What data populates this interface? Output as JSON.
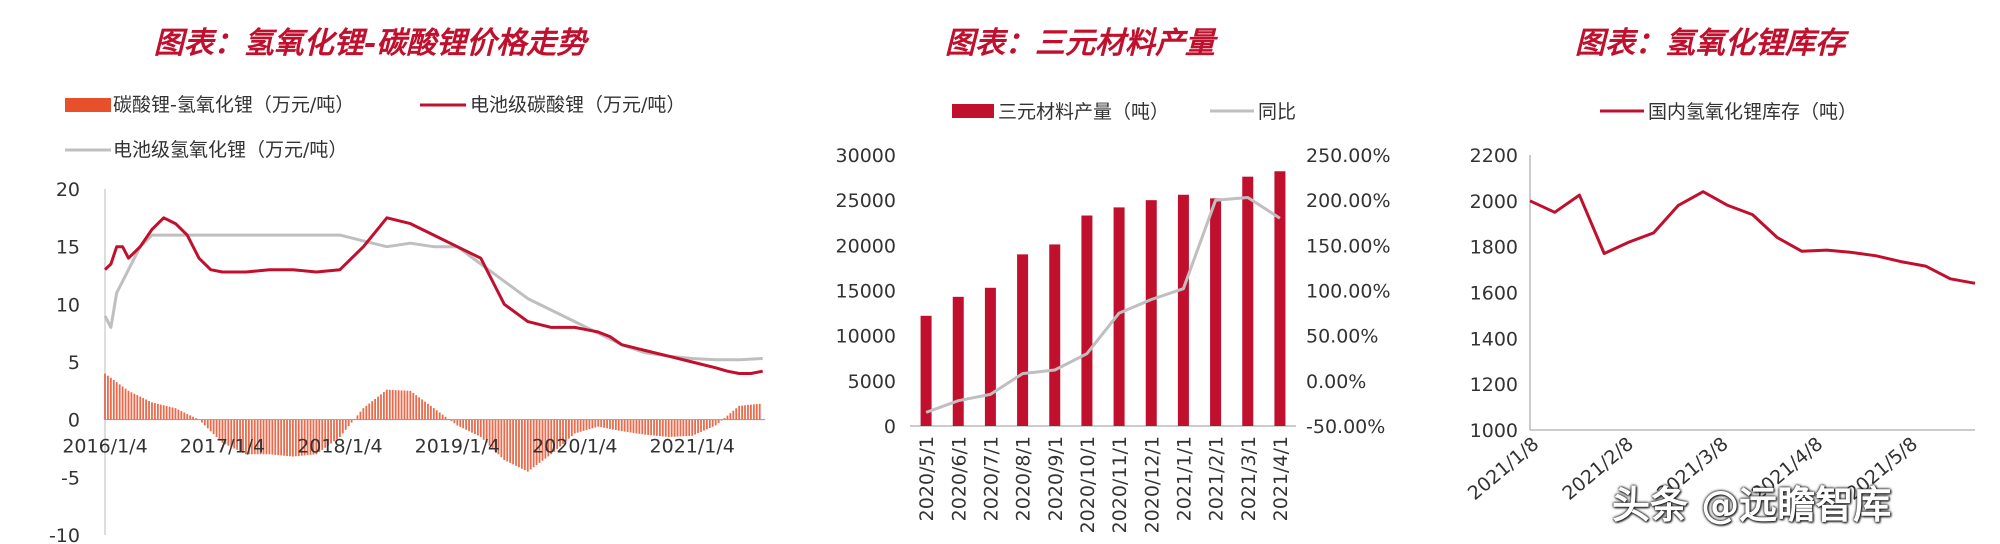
{
  "watermark": "头条 @远瞻智库",
  "chart_data": [
    {
      "type": "line",
      "title": "图表：氢氧化锂-碳酸锂价格走势",
      "x_labels": [
        "2016/1/4",
        "2017/1/4",
        "2018/1/4",
        "2019/1/4",
        "2020/1/4",
        "2021/1/4"
      ],
      "ylim": [
        -10,
        20
      ],
      "y_ticks": [
        "20",
        "15",
        "10",
        "5",
        "0",
        "-5",
        "-10"
      ],
      "legend": [
        "碳酸锂-氢氧化锂（万元/吨）",
        "电池级碳酸锂（万元/吨）",
        "电池级氢氧化锂（万元/吨）"
      ],
      "colors": {
        "spread": "#e8502b",
        "carbonate": "#c0102d",
        "hydroxide": "#bfbfbf"
      },
      "series": [
        {
          "name": "电池级碳酸锂（万元/吨）",
          "type": "line",
          "x": [
            0,
            0.05,
            0.1,
            0.15,
            0.2,
            0.3,
            0.4,
            0.5,
            0.6,
            0.7,
            0.8,
            0.9,
            1.0,
            1.2,
            1.4,
            1.6,
            1.8,
            2.0,
            2.2,
            2.4,
            2.6,
            2.8,
            3.0,
            3.2,
            3.4,
            3.6,
            3.8,
            3.9,
            4.0,
            4.1,
            4.2,
            4.3,
            4.4,
            4.6,
            4.8,
            5.0,
            5.2,
            5.3,
            5.4,
            5.5,
            5.6
          ],
          "y": [
            13,
            13.5,
            15,
            15,
            14,
            15,
            16.5,
            17.5,
            17,
            16,
            14,
            13,
            12.8,
            12.8,
            13,
            13,
            12.8,
            13,
            15,
            17.5,
            17,
            16,
            15,
            14,
            10,
            8.5,
            8,
            8,
            8,
            7.8,
            7.6,
            7.2,
            6.5,
            6,
            5.5,
            5,
            4.5,
            4.2,
            4,
            4,
            4.2
          ]
        },
        {
          "name": "电池级氢氧化锂（万元/吨）",
          "type": "line",
          "x": [
            0,
            0.05,
            0.1,
            0.2,
            0.3,
            0.4,
            0.5,
            1.0,
            1.5,
            2.0,
            2.2,
            2.4,
            2.6,
            2.8,
            3.0,
            3.2,
            3.4,
            3.6,
            3.8,
            4.0,
            4.2,
            4.4,
            4.6,
            4.8,
            5.0,
            5.2,
            5.4,
            5.6
          ],
          "y": [
            9,
            8,
            11,
            13,
            15,
            16,
            16,
            16,
            16,
            16,
            15.5,
            15,
            15.3,
            15,
            15,
            13.5,
            12,
            10.5,
            9.5,
            8.5,
            7.5,
            6.5,
            5.8,
            5.5,
            5.3,
            5.2,
            5.2,
            5.3
          ]
        },
        {
          "name": "碳酸锂-氢氧化锂（万元/吨）",
          "type": "bar",
          "x": [
            0,
            0.2,
            0.4,
            0.6,
            0.8,
            1.0,
            1.2,
            1.4,
            1.6,
            1.8,
            2.0,
            2.2,
            2.4,
            2.6,
            2.8,
            3.0,
            3.2,
            3.4,
            3.6,
            3.8,
            4.0,
            4.2,
            4.4,
            4.6,
            4.8,
            5.0,
            5.2,
            5.4,
            5.6
          ],
          "y": [
            4,
            2.5,
            1.5,
            1,
            0,
            -2,
            -3,
            -3,
            -3.2,
            -3,
            -1.5,
            1,
            2.6,
            2.5,
            1,
            -0.5,
            -1.5,
            -3.5,
            -4.5,
            -3,
            -1.2,
            -0.6,
            -1,
            -1.3,
            -1.5,
            -1.4,
            -0.5,
            1.2,
            1.4
          ]
        }
      ]
    },
    {
      "type": "bar",
      "title": "图表：三元材料产量",
      "categories": [
        "2020/5/1",
        "2020/6/1",
        "2020/7/1",
        "2020/8/1",
        "2020/9/1",
        "2020/10/1",
        "2020/11/1",
        "2020/12/1",
        "2021/1/1",
        "2021/2/1",
        "2021/3/1",
        "2021/4/1"
      ],
      "ylim": [
        0,
        30000
      ],
      "y_ticks": [
        "30000",
        "25000",
        "20000",
        "15000",
        "10000",
        "5000",
        "0"
      ],
      "y2lim": [
        -50,
        250
      ],
      "y2_ticks": [
        "250.00%",
        "200.00%",
        "150.00%",
        "100.00%",
        "50.00%",
        "0.00%",
        "-50.00%"
      ],
      "legend": [
        "三元材料产量（吨）",
        "同比"
      ],
      "series": [
        {
          "name": "三元材料产量（吨）",
          "type": "bar",
          "color": "#c0102d",
          "values": [
            12200,
            14300,
            15300,
            19000,
            20100,
            23300,
            24200,
            25000,
            25600,
            25200,
            27600,
            28200
          ]
        },
        {
          "name": "同比",
          "type": "line",
          "axis": "right",
          "color": "#bfbfbf",
          "values": [
            -35,
            -22,
            -15,
            8,
            12,
            30,
            75,
            90,
            102,
            200,
            203,
            180
          ]
        }
      ]
    },
    {
      "type": "line",
      "title": "图表：氢氧化锂库存",
      "x_labels": [
        "2021/1/8",
        "2021/2/8",
        "2021/3/8",
        "2021/4/8",
        "2021/5/8"
      ],
      "ylim": [
        1000,
        2200
      ],
      "y_ticks": [
        "2200",
        "2000",
        "1800",
        "1600",
        "1400",
        "1200",
        "1000"
      ],
      "legend": [
        "国内氢氧化锂库存（吨）"
      ],
      "series": [
        {
          "name": "国内氢氧化锂库存（吨）",
          "color": "#c0102d",
          "values": [
            2000,
            1950,
            2025,
            1770,
            1820,
            1860,
            1980,
            2040,
            1980,
            1940,
            1840,
            1780,
            1785,
            1775,
            1760,
            1735,
            1715,
            1660,
            1640
          ]
        }
      ]
    }
  ]
}
